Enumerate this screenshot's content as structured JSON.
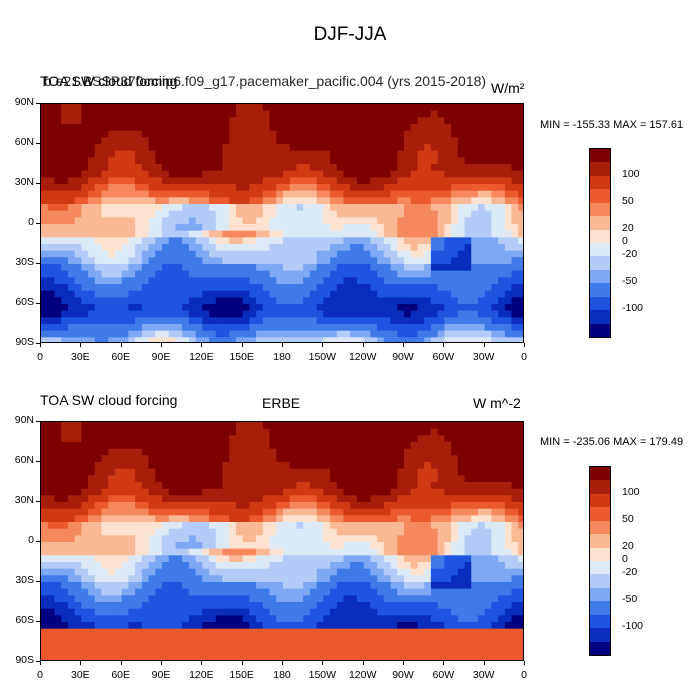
{
  "title": "DJF-JJA",
  "panels": [
    {
      "left_title": "TOA SW cloud forcing",
      "center_title": "",
      "run_title": "b.e21.BSSP370cmip6.f09_g17.pacemaker_pacific.004 (yrs 2015-2018)",
      "units": "W/m²",
      "min_max": "MIN = -155.33 MAX = 157.61",
      "colorbar_labels": [
        "100",
        "50",
        "20",
        "0",
        "-20",
        "-50",
        "-100"
      ]
    },
    {
      "left_title": "TOA SW cloud forcing",
      "center_title": "ERBE",
      "units": "W m^-2",
      "min_max": "MIN = -235.06 MAX = 179.49",
      "colorbar_labels": [
        "100",
        "50",
        "20",
        "0",
        "-20",
        "-50",
        "-100"
      ]
    }
  ],
  "axes": {
    "lat_labels": [
      "90N",
      "60N",
      "30N",
      "0",
      "30S",
      "60S",
      "90S"
    ],
    "lon_labels": [
      "0",
      "30E",
      "60E",
      "90E",
      "120E",
      "150E",
      "180",
      "150W",
      "120W",
      "90W",
      "60W",
      "30W",
      "0"
    ]
  },
  "palette": [
    "#00007e",
    "#0a2dbb",
    "#1e55e0",
    "#3f7ae9",
    "#7ea8f4",
    "#b3ccf7",
    "#dceaf8",
    "#fde3cf",
    "#fbb894",
    "#f5895d",
    "#ea5a2c",
    "#d03a12",
    "#a71e0a",
    "#7c0000"
  ]
}
